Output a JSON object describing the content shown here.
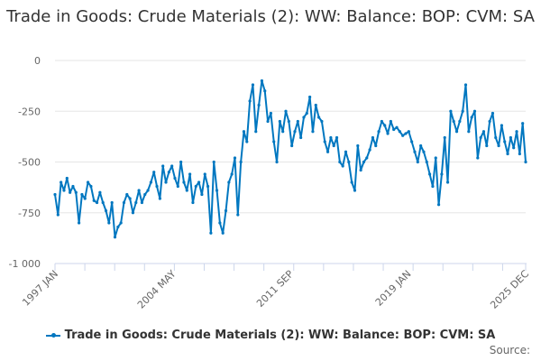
{
  "chart_data": {
    "type": "line",
    "title": "Trade in Goods: Crude Materials (2): WW: Balance: BOP: CVM: SA",
    "xlabel": "",
    "ylabel": "",
    "x_start": "1997 JAN",
    "x_end": "2025 DEC",
    "frequency": "approx. evenly spaced samples of monthly series",
    "x_tick_labels": [
      "1997 JAN",
      "2004 MAY",
      "2011 SEP",
      "2019 JAN",
      "2025 DEC"
    ],
    "y_ticks": [
      0,
      -250,
      -500,
      -750,
      -1000
    ],
    "y_tick_labels": [
      "0",
      "-250",
      "-500",
      "-750",
      "-1 000"
    ],
    "ylim": [
      -1000,
      0
    ],
    "grid": true,
    "legend_position": "bottom",
    "series": [
      {
        "name": "Trade in Goods: Crude Materials (2): WW: Balance: BOP: CVM: SA",
        "color": "#0077c0",
        "values": [
          -660,
          -760,
          -600,
          -640,
          -580,
          -650,
          -620,
          -650,
          -800,
          -660,
          -680,
          -600,
          -620,
          -690,
          -700,
          -650,
          -700,
          -740,
          -800,
          -700,
          -870,
          -820,
          -800,
          -700,
          -660,
          -680,
          -750,
          -700,
          -640,
          -700,
          -660,
          -640,
          -600,
          -550,
          -620,
          -680,
          -520,
          -600,
          -550,
          -520,
          -580,
          -620,
          -500,
          -600,
          -640,
          -560,
          -700,
          -620,
          -600,
          -660,
          -560,
          -620,
          -850,
          -500,
          -640,
          -800,
          -850,
          -740,
          -600,
          -560,
          -480,
          -760,
          -500,
          -350,
          -400,
          -200,
          -120,
          -350,
          -220,
          -100,
          -150,
          -300,
          -260,
          -400,
          -500,
          -300,
          -350,
          -250,
          -300,
          -420,
          -350,
          -300,
          -380,
          -280,
          -260,
          -180,
          -350,
          -220,
          -280,
          -300,
          -400,
          -450,
          -380,
          -420,
          -380,
          -500,
          -520,
          -450,
          -500,
          -600,
          -640,
          -420,
          -540,
          -500,
          -480,
          -440,
          -380,
          -420,
          -350,
          -300,
          -320,
          -360,
          -300,
          -340,
          -330,
          -350,
          -370,
          -360,
          -350,
          -400,
          -450,
          -500,
          -420,
          -450,
          -500,
          -560,
          -620,
          -480,
          -710,
          -560,
          -380,
          -600,
          -250,
          -300,
          -350,
          -300,
          -250,
          -120,
          -350,
          -280,
          -250,
          -480,
          -380,
          -350,
          -420,
          -300,
          -260,
          -380,
          -420,
          -320,
          -400,
          -460,
          -380,
          -430,
          -350,
          -460,
          -310,
          -500
        ]
      }
    ]
  },
  "source_label": "Source:"
}
